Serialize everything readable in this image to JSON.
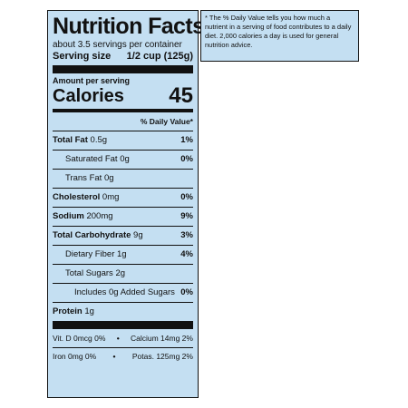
{
  "label": {
    "title": "Nutrition Facts",
    "servings_per_container": "about 3.5 servings per container",
    "serving_size_label": "Serving size",
    "serving_size_value": "1/2 cup (125g)",
    "amount_per_serving": "Amount per serving",
    "calories_label": "Calories",
    "calories_value": "45",
    "daily_value_header": "% Daily Value*",
    "nutrients": [
      {
        "name": "Total Fat",
        "amount": "0.5g",
        "dv": "1%"
      },
      {
        "name": "Saturated Fat",
        "amount": "0g",
        "dv": "0%"
      },
      {
        "name": "Trans Fat",
        "amount": "0g",
        "dv": ""
      },
      {
        "name": "Cholesterol",
        "amount": "0mg",
        "dv": "0%"
      },
      {
        "name": "Sodium",
        "amount": "200mg",
        "dv": "9%"
      },
      {
        "name": "Total Carbohydrate",
        "amount": "9g",
        "dv": "3%"
      },
      {
        "name": "Dietary Fiber",
        "amount": "1g",
        "dv": "4%"
      },
      {
        "name": "Total Sugars",
        "amount": "2g",
        "dv": ""
      },
      {
        "name": "Includes 0g Added Sugars",
        "amount": "",
        "dv": "0%"
      },
      {
        "name": "Protein",
        "amount": "1g",
        "dv": ""
      }
    ],
    "vitamins": [
      {
        "left": "Vit. D 0mcg 0%",
        "right": "Calcium 14mg 2%"
      },
      {
        "left": "Iron 0mg 0%",
        "right": "Potas. 125mg 2%"
      }
    ],
    "separator": "•"
  },
  "footnote": {
    "text": "* The % Daily Value tells you how much a nutrient in a serving of food contributes to a daily diet. 2,000 calories a day is used for general nutrition advice."
  },
  "colors": {
    "panel_bg": "#c4dff2",
    "ink": "#111111"
  }
}
